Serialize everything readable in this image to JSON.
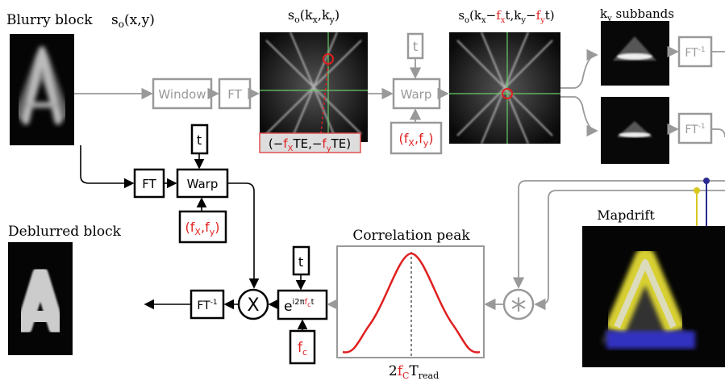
{
  "titles": {
    "blurry_block": "Blurry block",
    "deblurred_block": "Deblurred block",
    "correlation_peak": "Correlation peak",
    "mapdrift": "Mapdrift"
  },
  "formulas": {
    "blurry_signal": [
      "s",
      "o",
      "(x,y)"
    ],
    "spectrum": [
      "s",
      "o",
      "(k",
      "x",
      ",k",
      "y",
      ")"
    ],
    "shifted_spectrum": [
      "s",
      "o",
      "(k",
      "x",
      "−",
      "f",
      "x",
      "t,k",
      "y",
      "−",
      "f",
      "y",
      "t)"
    ],
    "subbands": [
      "k",
      "y",
      " subbands"
    ],
    "offset": [
      "(−",
      "f",
      "X",
      "TE,−",
      "f",
      "y",
      "TE)"
    ],
    "phase": [
      "e",
      "i2π",
      "f",
      "c",
      "t"
    ],
    "peak_position": [
      "2",
      "f",
      "C",
      "T",
      "read"
    ]
  },
  "blocks": {
    "window": "Window",
    "ft_top": "FT",
    "warp_top": "Warp",
    "t_top": "t",
    "freq_top": [
      "(",
      "f",
      "X",
      ",",
      "f",
      "y",
      ")"
    ],
    "ift_1": [
      "FT",
      "-1"
    ],
    "ift_2": [
      "FT",
      "-1"
    ],
    "ft_bottom": "FT",
    "warp_bottom": "Warp",
    "t_bottom": "t",
    "freq_bottom": [
      "(",
      "f",
      "X",
      ",",
      "f",
      "y",
      ")"
    ],
    "ift_bottom": [
      "FT",
      "-1"
    ],
    "t_phase": "t",
    "fc": [
      "f",
      "c"
    ],
    "multiply": "X",
    "convolve": "*"
  }
}
